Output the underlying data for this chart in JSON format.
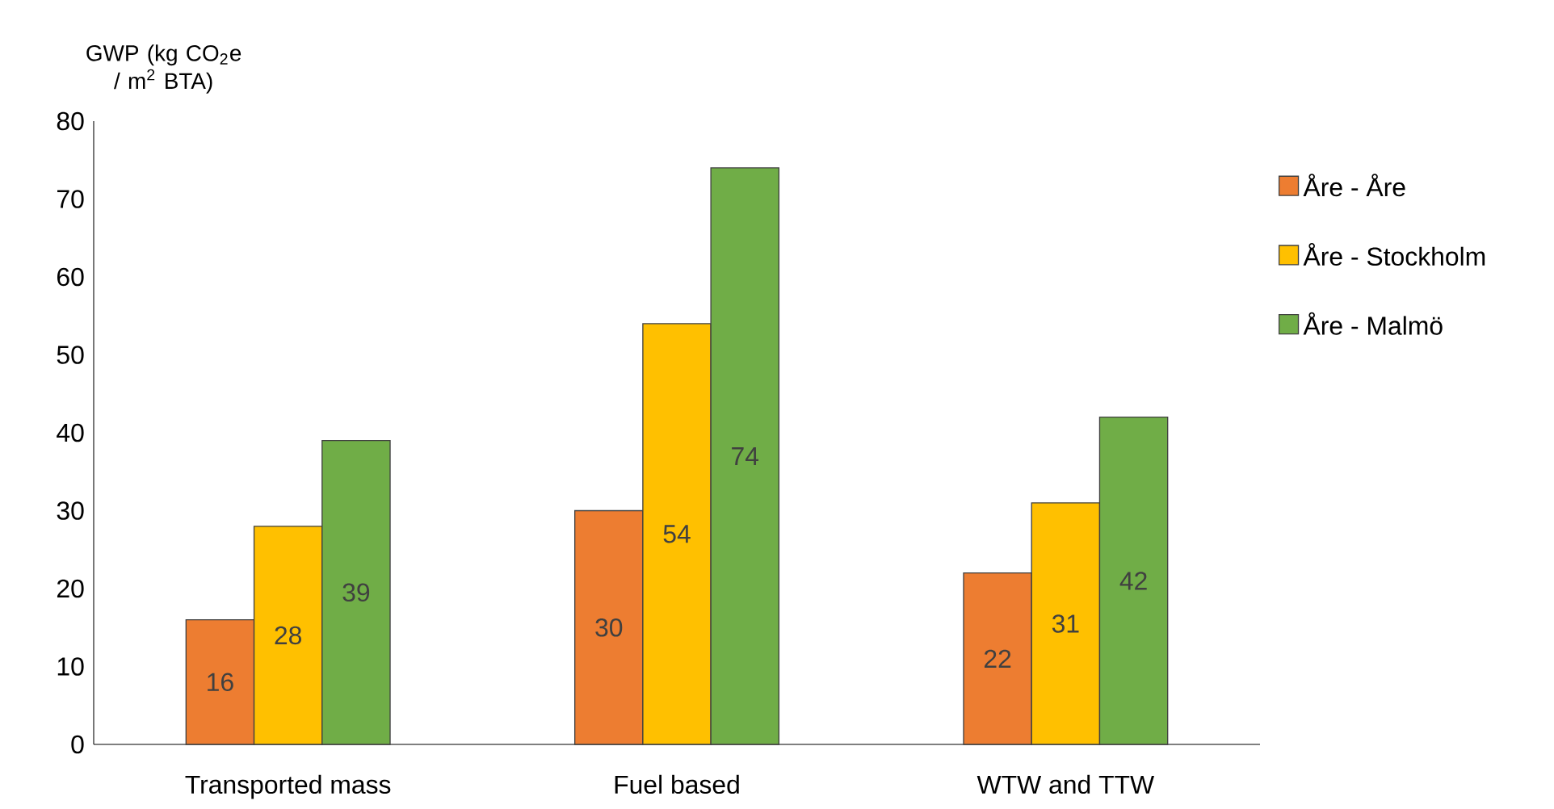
{
  "chart_data": {
    "type": "bar",
    "ylabel": "GWP (kg CO$_{2}$e / m$^{2}$ BTA)",
    "categories": [
      "Transported mass",
      "Fuel based",
      "WTW and TTW"
    ],
    "series": [
      {
        "name": "Åre - Åre",
        "color": "#ed7d31",
        "values": [
          16,
          30,
          22
        ]
      },
      {
        "name": "Åre - Stockholm",
        "color": "#ffc000",
        "values": [
          28,
          54,
          31
        ]
      },
      {
        "name": "Åre - Malmö",
        "color": "#70ad47",
        "values": [
          39,
          74,
          42
        ]
      }
    ],
    "ylim": [
      0,
      80
    ],
    "yticks": [
      0,
      10,
      20,
      30,
      40,
      50,
      60,
      70,
      80
    ],
    "data_labels": true,
    "legend": "right",
    "grid": false
  }
}
